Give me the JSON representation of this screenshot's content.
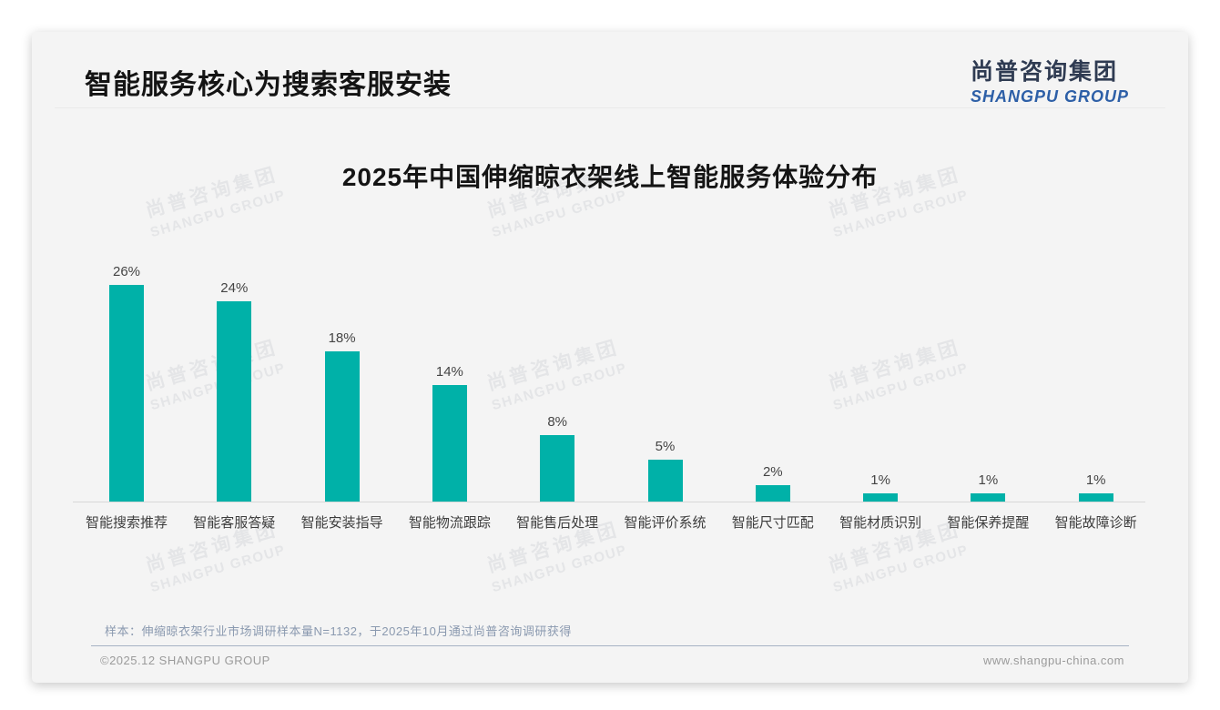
{
  "header": {
    "title": "智能服务核心为搜索客服安装",
    "logo": {
      "cn": "尚普咨询集团",
      "en": "SHANGPU GROUP"
    }
  },
  "watermark": {
    "cn": "尚普咨询集团",
    "en": "SHANGPU GROUP"
  },
  "chart_data": {
    "type": "bar",
    "title": "2025年中国伸缩晾衣架线上智能服务体验分布",
    "categories": [
      "智能搜索推荐",
      "智能客服答疑",
      "智能安装指导",
      "智能物流跟踪",
      "智能售后处理",
      "智能评价系统",
      "智能尺寸匹配",
      "智能材质识别",
      "智能保养提醒",
      "智能故障诊断"
    ],
    "values": [
      26,
      24,
      18,
      14,
      8,
      5,
      2,
      1,
      1,
      1
    ],
    "unit": "%",
    "data_labels": [
      "26%",
      "24%",
      "18%",
      "14%",
      "8%",
      "5%",
      "2%",
      "1%",
      "1%",
      "1%"
    ],
    "ylim": [
      0,
      28
    ],
    "grid": false,
    "legend_visible": false,
    "bar_color": "#00b1a8",
    "axis_color": "#d8d8d8"
  },
  "footer": {
    "note": "样本：伸缩晾衣架行业市场调研样本量N=1132，于2025年10月通过尚普咨询调研获得",
    "copyright": "©2025.12 SHANGPU GROUP",
    "website": "www.shangpu-china.com"
  },
  "colors": {
    "card_background": "#f4f4f4",
    "title_text": "#141414",
    "logo_cn": "#2f3b52",
    "logo_en": "#2d5fa7",
    "bar": "#00b1a8",
    "note_text": "#8a99af"
  }
}
